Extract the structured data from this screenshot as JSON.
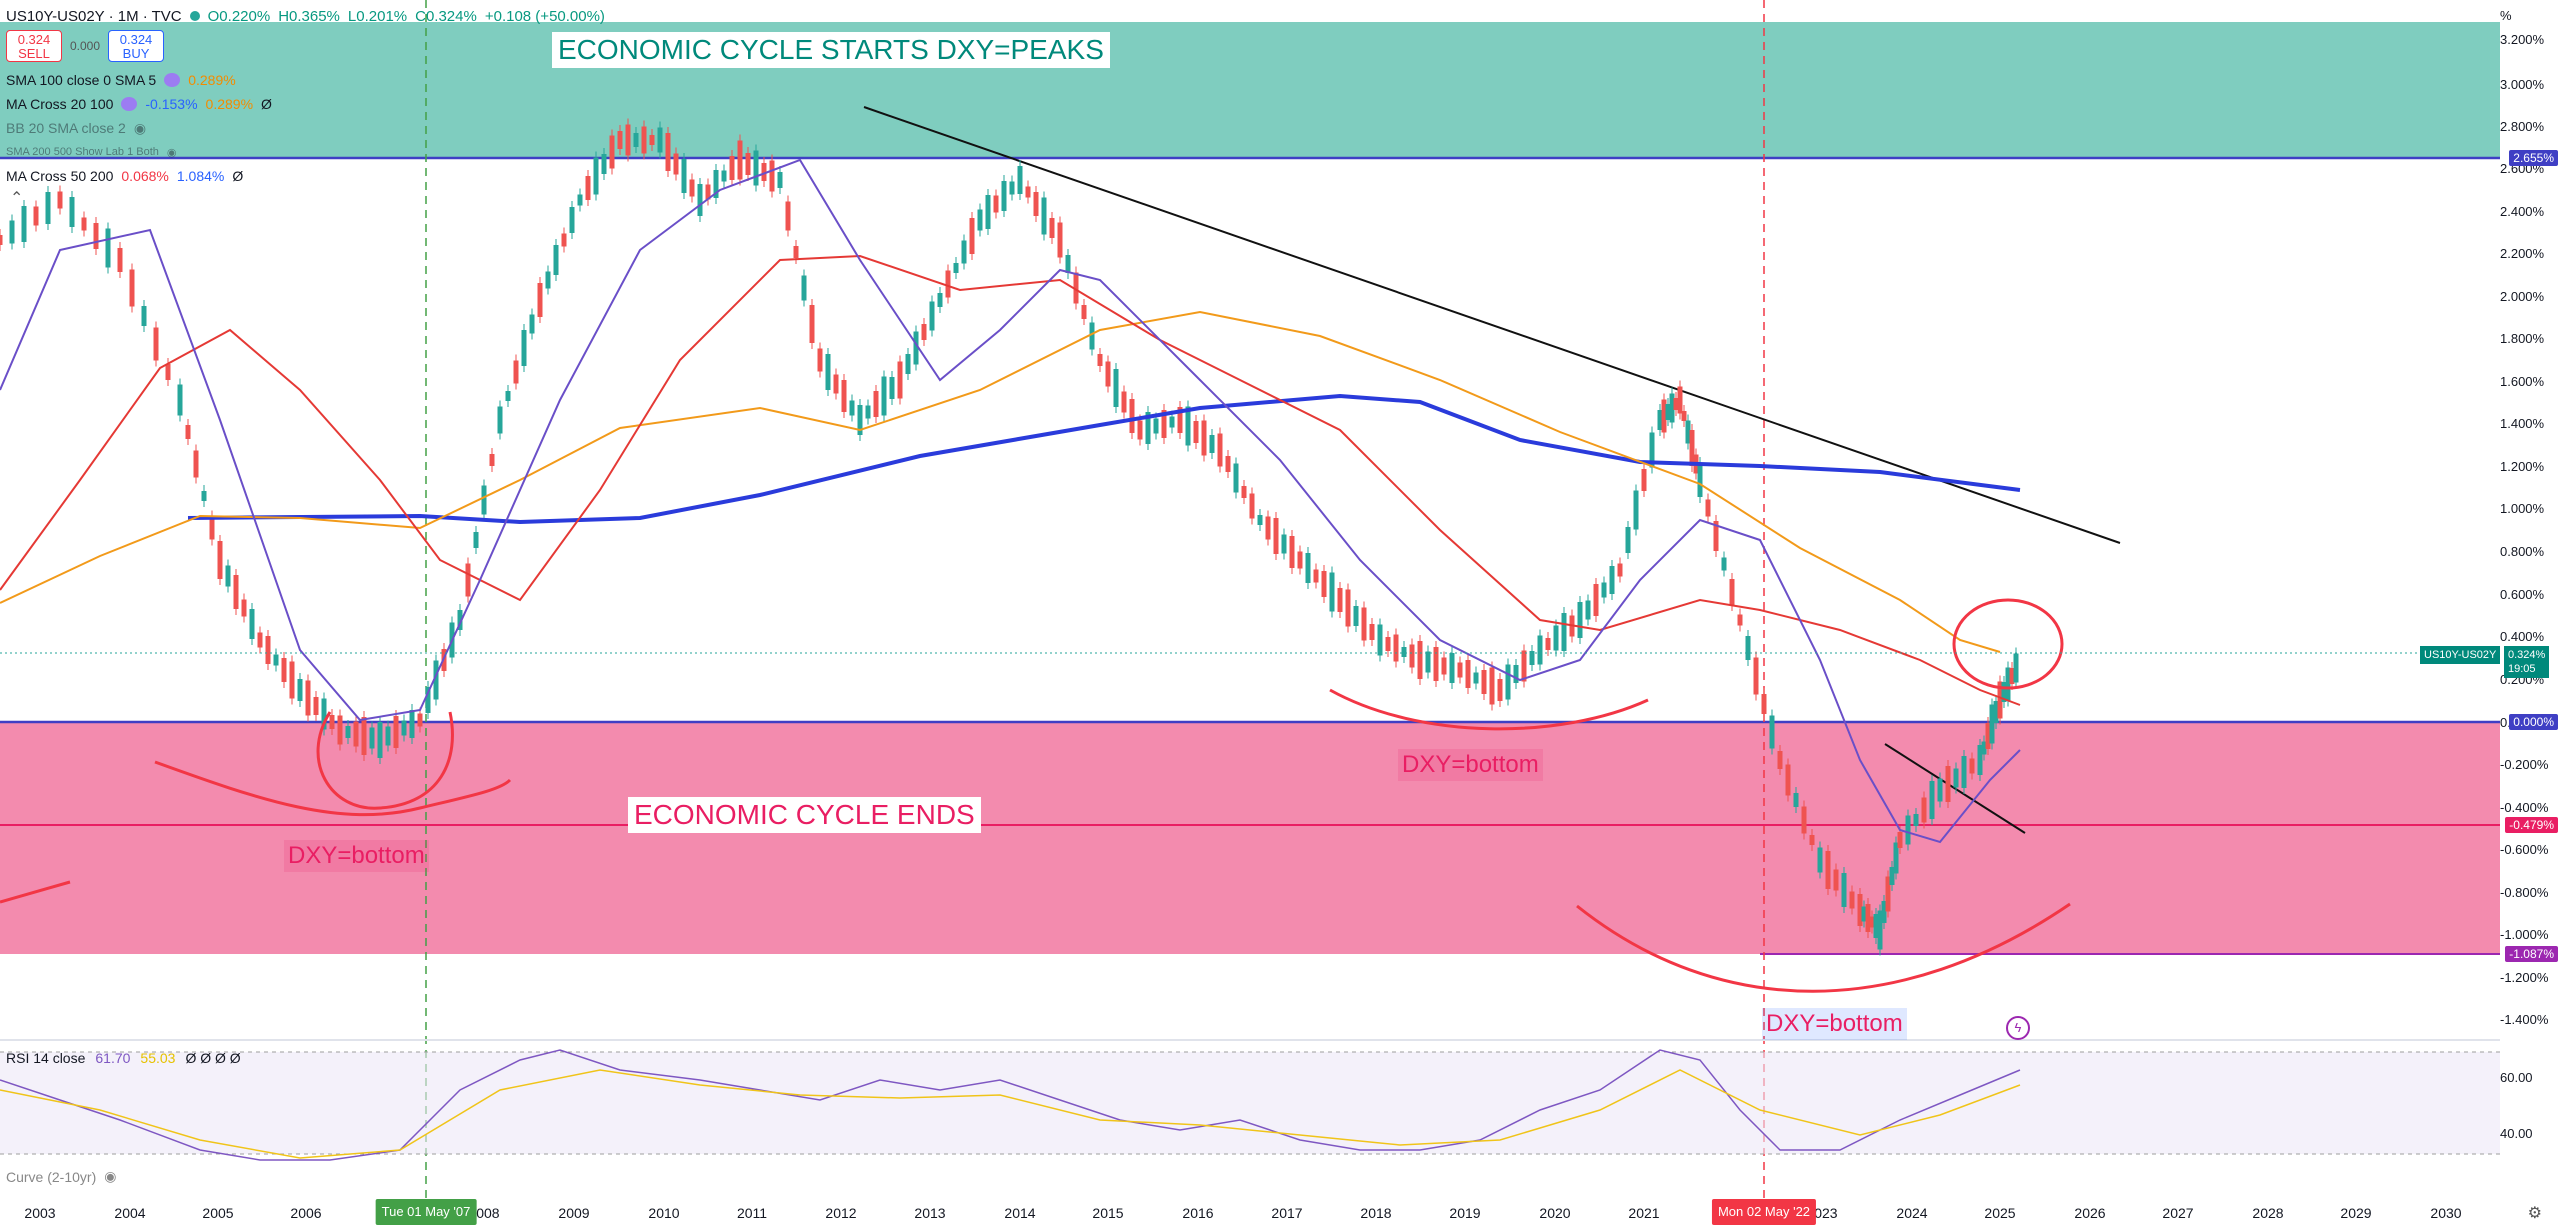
{
  "header": {
    "symbol": "US10Y-US02Y · 1M · TVC",
    "open": "O0.220%",
    "high": "H0.365%",
    "low": "L0.201%",
    "close": "C0.324%",
    "change": "+0.108 (+50.00%)"
  },
  "trade": {
    "sell_price": "0.324",
    "sell_label": "SELL",
    "spread": "0.000",
    "buy_price": "0.324",
    "buy_label": "BUY"
  },
  "indicators": [
    {
      "label": "SMA 100 close 0 SMA 5",
      "v1": "0.289%",
      "v2": "",
      "v3": ""
    },
    {
      "label": "MA Cross 20 100",
      "v1": "-0.153%",
      "v2": "0.289%",
      "v3": "Ø"
    },
    {
      "label": "BB 20 SMA close 2",
      "v1": "",
      "v2": "",
      "v3": ""
    },
    {
      "label": "SMA 200 500 Show Lab 1 Both",
      "v1": "",
      "v2": "",
      "v3": ""
    },
    {
      "label": "MA Cross 50 200",
      "v1": "0.068%",
      "v2": "1.084%",
      "v3": "Ø"
    }
  ],
  "rsi": {
    "label": "RSI 14 close",
    "v1": "61.70",
    "v2": "55.03",
    "v3": "Ø Ø Ø Ø"
  },
  "curve_label": "Curve (2-10yr)",
  "annotations": {
    "title_top": "ECONOMIC CYCLE STARTS DXY=PEAKS",
    "title_bottom": "ECONOMIC CYCLE ENDS",
    "dxy1": "DXY=bottom",
    "dxy2": "DXY=bottom",
    "dxy3": "DXY=bottom"
  },
  "price_tag": {
    "symbol": "US10Y-US02Y",
    "value": "0.324%",
    "timer": "19:05"
  },
  "y_axis": {
    "unit": "%",
    "ticks": [
      "3.200%",
      "3.000%",
      "2.800%",
      "2.600%",
      "2.400%",
      "2.200%",
      "2.000%",
      "1.800%",
      "1.600%",
      "1.400%",
      "1.200%",
      "1.000%",
      "0.800%",
      "0.600%",
      "0.400%",
      "0.200%",
      "0.000%",
      "-0.200%",
      "-0.400%",
      "-0.600%",
      "-0.800%",
      "-1.000%",
      "-1.200%",
      "-1.400%"
    ],
    "tags": [
      {
        "label": "2.655%",
        "color": "#3f3fc4"
      },
      {
        "label": "0.000%",
        "color": "#3f3fc4"
      },
      {
        "label": "-0.479%",
        "color": "#e91e63"
      },
      {
        "label": "-1.087%",
        "color": "#9c27b0"
      }
    ],
    "rsi_ticks": [
      "60.00",
      "40.00"
    ]
  },
  "x_axis": {
    "ticks": [
      "2003",
      "2004",
      "2005",
      "2006",
      "2008",
      "2009",
      "2010",
      "2011",
      "2012",
      "2013",
      "2014",
      "2015",
      "2016",
      "2017",
      "2018",
      "2019",
      "2020",
      "2021",
      "2023",
      "2024",
      "2025",
      "2026",
      "2027",
      "2028",
      "2029",
      "2030"
    ],
    "tags": [
      {
        "label": "Tue 01 May '07",
        "color": "#2e7d32"
      },
      {
        "label": "Mon 02 May '22",
        "color": "#f23645"
      }
    ]
  },
  "colors": {
    "teal_zone": "#7fcdbf",
    "pink_zone": "#f38bae",
    "up": "#26a69a",
    "down": "#ef5350",
    "sma_blue": "#2a3bdb",
    "ma_orange": "#f29a1a",
    "ma_red": "#e53935",
    "ma_purple": "#6a4fc8"
  },
  "icons": {
    "eye": "eye-icon",
    "lightning": "lightning-icon",
    "chevron": "chevron-up-icon",
    "settings": "gear-icon"
  }
}
